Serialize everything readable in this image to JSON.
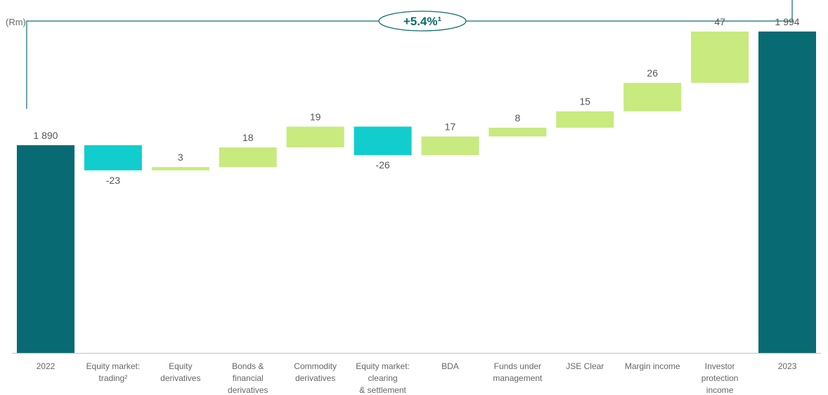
{
  "unit_label": "(Rm)",
  "growth_label": "+5.4%¹",
  "colors": {
    "total": "#086a73",
    "increase": "#c8ea7f",
    "decrease": "#12cdcd",
    "axis": "#bfbfbf",
    "bracket": "#0f6d6d"
  },
  "chart_data": {
    "type": "bar",
    "subtype": "waterfall",
    "ylim": [
      1700,
      2010
    ],
    "categories": [
      [
        "2022"
      ],
      [
        "Equity market:",
        "trading²"
      ],
      [
        "Equity",
        "derivatives"
      ],
      [
        "Bonds &",
        "financial",
        "derivatives"
      ],
      [
        "Commodity",
        "derivatives"
      ],
      [
        "Equity market:",
        "clearing",
        "& settlement"
      ],
      [
        "BDA"
      ],
      [
        "Funds under",
        "management"
      ],
      [
        "JSE Clear"
      ],
      [
        "Margin income"
      ],
      [
        "Investor",
        "protection",
        "income"
      ],
      [
        "2023"
      ]
    ],
    "values": [
      1890,
      -23,
      3,
      18,
      19,
      -26,
      17,
      8,
      15,
      26,
      47,
      1994
    ],
    "kinds": [
      "total",
      "change",
      "change",
      "change",
      "change",
      "change",
      "change",
      "change",
      "change",
      "change",
      "change",
      "total"
    ],
    "data_labels": [
      "1 890",
      "-23",
      "3",
      "18",
      "19",
      "-26",
      "17",
      "8",
      "15",
      "26",
      "47",
      "1 994"
    ]
  }
}
